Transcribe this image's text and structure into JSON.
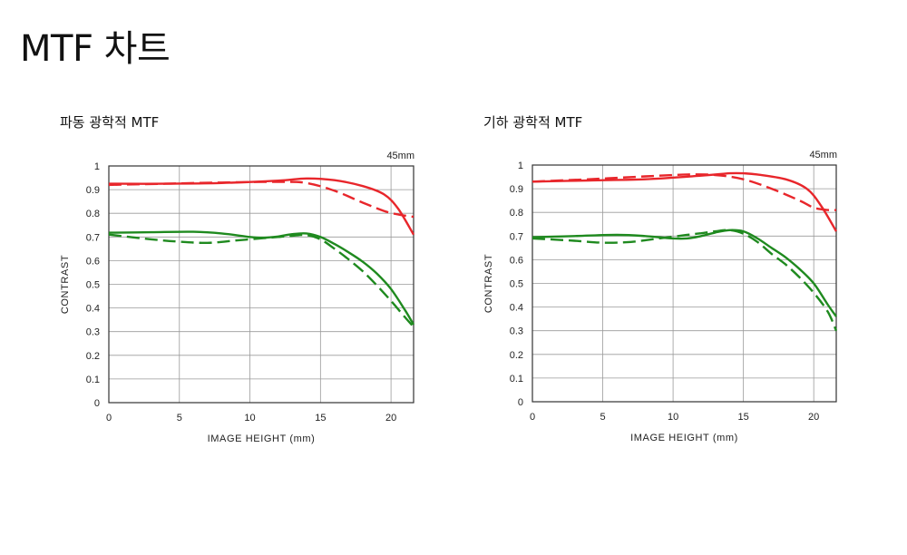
{
  "page": {
    "title": "MTF 차트"
  },
  "chart_data": [
    {
      "type": "line",
      "title": "파동 광학적 MTF",
      "focal_length": "45mm",
      "xlabel": "IMAGE HEIGHT (mm)",
      "ylabel": "CONTRAST",
      "xlim": [
        0,
        21.6
      ],
      "ylim": [
        0,
        1
      ],
      "xticks": [
        "0",
        "5",
        "10",
        "15",
        "20"
      ],
      "yticks": [
        "0",
        "0.1",
        "0.2",
        "0.3",
        "0.4",
        "0.5",
        "0.6",
        "0.7",
        "0.8",
        "0.9",
        "1"
      ],
      "grid": true,
      "series": [
        {
          "color": "#e8262b",
          "dash": "solid",
          "x": [
            0,
            4,
            8,
            12,
            14,
            16,
            18,
            19.5,
            20.5,
            21.6
          ],
          "y": [
            0.925,
            0.925,
            0.928,
            0.938,
            0.947,
            0.94,
            0.915,
            0.88,
            0.82,
            0.71
          ]
        },
        {
          "color": "#e8262b",
          "dash": "dashed",
          "x": [
            0,
            4,
            8,
            12,
            14,
            16,
            18,
            19.5,
            20.5,
            21.6
          ],
          "y": [
            0.92,
            0.925,
            0.93,
            0.933,
            0.928,
            0.895,
            0.845,
            0.81,
            0.795,
            0.785
          ]
        },
        {
          "color": "#1f8a1f",
          "dash": "solid",
          "x": [
            0,
            3,
            6,
            8,
            10,
            11,
            12,
            13,
            14,
            15,
            16,
            17,
            18,
            19,
            20,
            21,
            21.6
          ],
          "y": [
            0.718,
            0.72,
            0.722,
            0.715,
            0.7,
            0.697,
            0.702,
            0.712,
            0.715,
            0.7,
            0.67,
            0.635,
            0.595,
            0.545,
            0.48,
            0.39,
            0.33
          ]
        },
        {
          "color": "#1f8a1f",
          "dash": "dashed",
          "x": [
            0,
            3,
            5,
            7,
            9,
            11,
            12,
            13,
            14,
            15,
            16,
            17,
            18,
            19,
            20,
            21,
            21.6
          ],
          "y": [
            0.71,
            0.69,
            0.68,
            0.675,
            0.685,
            0.695,
            0.7,
            0.705,
            0.708,
            0.69,
            0.65,
            0.605,
            0.555,
            0.495,
            0.43,
            0.36,
            0.32
          ]
        }
      ]
    },
    {
      "type": "line",
      "title": "기하 광학적 MTF",
      "focal_length": "45mm",
      "xlabel": "IMAGE HEIGHT (mm)",
      "ylabel": "CONTRAST",
      "xlim": [
        0,
        21.6
      ],
      "ylim": [
        0,
        1
      ],
      "xticks": [
        "0",
        "5",
        "10",
        "15",
        "20"
      ],
      "yticks": [
        "0",
        "0.1",
        "0.2",
        "0.3",
        "0.4",
        "0.5",
        "0.6",
        "0.7",
        "0.8",
        "0.9",
        "1"
      ],
      "grid": true,
      "series": [
        {
          "color": "#e8262b",
          "dash": "solid",
          "x": [
            0,
            4,
            8,
            12,
            14,
            15,
            16,
            18,
            19.5,
            20.5,
            21.6
          ],
          "y": [
            0.93,
            0.935,
            0.94,
            0.955,
            0.965,
            0.965,
            0.96,
            0.94,
            0.9,
            0.83,
            0.72
          ]
        },
        {
          "color": "#e8262b",
          "dash": "dashed",
          "x": [
            0,
            4,
            8,
            11,
            13,
            15,
            17,
            19,
            20,
            21,
            21.6
          ],
          "y": [
            0.93,
            0.94,
            0.952,
            0.96,
            0.958,
            0.94,
            0.9,
            0.85,
            0.82,
            0.81,
            0.81
          ]
        },
        {
          "color": "#1f8a1f",
          "dash": "solid",
          "x": [
            0,
            3,
            6,
            8,
            10,
            11,
            12,
            13,
            14,
            15,
            16,
            17,
            18,
            19,
            20,
            21,
            21.6
          ],
          "y": [
            0.695,
            0.7,
            0.705,
            0.7,
            0.69,
            0.69,
            0.7,
            0.715,
            0.725,
            0.72,
            0.69,
            0.65,
            0.61,
            0.56,
            0.5,
            0.41,
            0.36
          ]
        },
        {
          "color": "#1f8a1f",
          "dash": "dashed",
          "x": [
            0,
            3,
            5,
            7,
            9,
            11,
            12,
            13,
            14,
            15,
            16,
            17,
            18,
            19,
            20,
            21,
            21.6
          ],
          "y": [
            0.69,
            0.68,
            0.672,
            0.675,
            0.69,
            0.705,
            0.712,
            0.72,
            0.725,
            0.71,
            0.675,
            0.625,
            0.58,
            0.525,
            0.46,
            0.38,
            0.3
          ]
        }
      ]
    }
  ]
}
